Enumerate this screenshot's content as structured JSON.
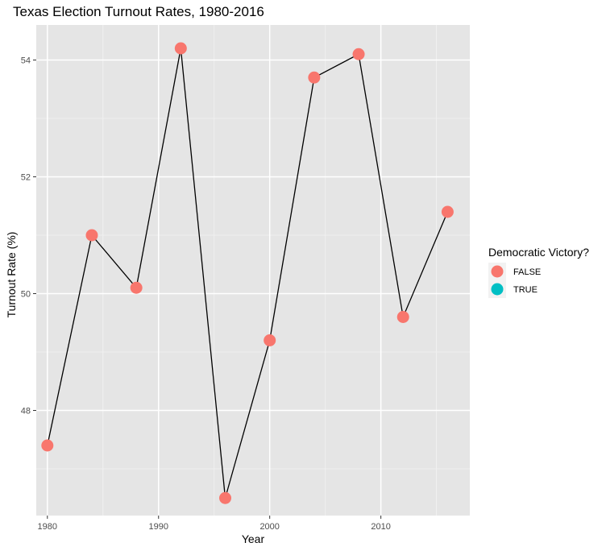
{
  "chart_data": {
    "type": "line",
    "title": "Texas Election Turnout Rates, 1980-2016",
    "xlabel": "Year",
    "ylabel": "Turnout Rate (%)",
    "xlim": [
      1979,
      2018
    ],
    "ylim": [
      46.2,
      54.6
    ],
    "x_ticks": [
      1980,
      1990,
      2000,
      2010
    ],
    "y_ticks": [
      48,
      50,
      52,
      54
    ],
    "grid": true,
    "legend_position": "right",
    "legend": {
      "title": "Democratic Victory?",
      "entries": [
        {
          "label": "FALSE",
          "color": "#F8766D"
        },
        {
          "label": "TRUE",
          "color": "#00BFC4"
        }
      ]
    },
    "line_color": "#000000",
    "panel_color": "#E5E5E5",
    "series": [
      {
        "x": [
          1980,
          1984,
          1988,
          1992,
          1996,
          2000,
          2004,
          2008,
          2012,
          2016
        ],
        "y": [
          47.4,
          51.0,
          50.1,
          54.2,
          46.5,
          49.2,
          53.7,
          54.1,
          49.6,
          51.4
        ],
        "group": [
          "FALSE",
          "FALSE",
          "FALSE",
          "FALSE",
          "FALSE",
          "FALSE",
          "FALSE",
          "FALSE",
          "FALSE",
          "FALSE"
        ]
      }
    ]
  }
}
